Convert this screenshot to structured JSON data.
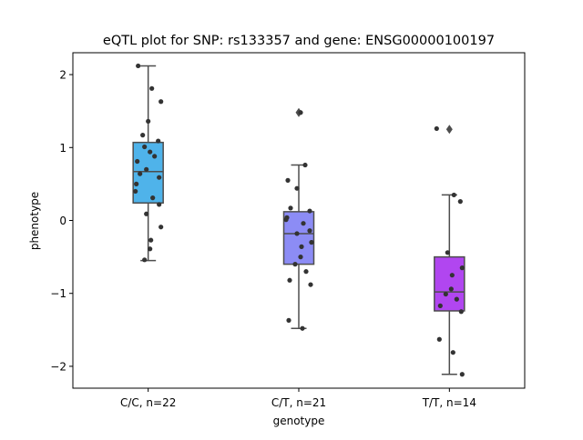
{
  "chart_data": {
    "type": "box",
    "title": "eQTL plot for SNP: rs133357 and gene: ENSG00000100197",
    "xlabel": "genotype",
    "ylabel": "phenotype",
    "ylim": [
      -2.3,
      2.3
    ],
    "yticks": [
      -2,
      -1,
      0,
      1,
      2
    ],
    "ytick_labels": [
      "−2",
      "−1",
      "0",
      "1",
      "2"
    ],
    "grid": false,
    "legend": "none",
    "categories": [
      "C/C, n=22",
      "C/T, n=21",
      "T/T, n=14"
    ],
    "series": [
      {
        "category": "C/C, n=22",
        "color": "#4fb3ea",
        "q1": 0.24,
        "median": 0.67,
        "q3": 1.07,
        "whisker_low": -0.55,
        "whisker_high": 2.12,
        "outliers": [],
        "points": [
          2.12,
          1.81,
          1.63,
          1.36,
          1.17,
          1.09,
          1.01,
          0.94,
          0.88,
          0.81,
          0.7,
          0.64,
          0.59,
          0.5,
          0.4,
          0.31,
          0.22,
          0.09,
          -0.09,
          -0.27,
          -0.39,
          -0.54
        ]
      },
      {
        "category": "C/T, n=21",
        "color": "#8c8cf5",
        "q1": -0.6,
        "median": -0.18,
        "q3": 0.12,
        "whisker_low": -1.48,
        "whisker_high": 0.76,
        "outliers": [
          1.48
        ],
        "points": [
          1.48,
          0.76,
          0.55,
          0.44,
          0.17,
          0.13,
          0.04,
          0.01,
          -0.04,
          -0.14,
          -0.18,
          -0.3,
          -0.36,
          -0.5,
          -0.6,
          -0.7,
          -0.82,
          -0.88,
          -1.37,
          -1.48,
          -0.3
        ]
      },
      {
        "category": "T/T, n=14",
        "color": "#b146f0",
        "q1": -1.24,
        "median": -0.98,
        "q3": -0.5,
        "whisker_low": -2.11,
        "whisker_high": 0.35,
        "outliers": [
          1.25
        ],
        "points": [
          1.26,
          0.35,
          0.26,
          -0.44,
          -0.65,
          -0.75,
          -0.94,
          -1.01,
          -1.08,
          -1.17,
          -1.25,
          -1.63,
          -1.81,
          -2.11
        ]
      }
    ]
  }
}
